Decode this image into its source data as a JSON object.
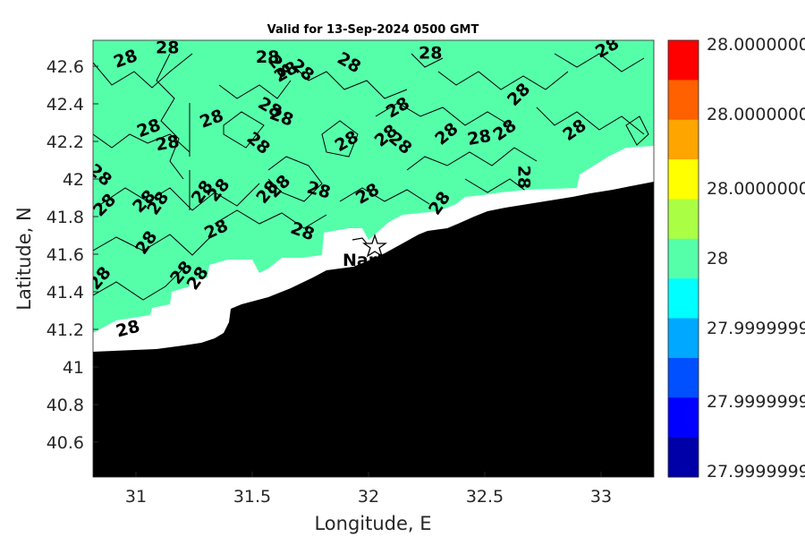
{
  "title": "Valid for 13-Sep-2024 0500 GMT",
  "xlabel": "Longitude, E",
  "ylabel": "Latitude, N",
  "x_ticks": [
    "31",
    "31.5",
    "32",
    "32.5",
    "33"
  ],
  "y_ticks": [
    "40.6",
    "40.8",
    "41",
    "41.2",
    "41.4",
    "41.6",
    "41.8",
    "42",
    "42.2",
    "42.4",
    "42.6"
  ],
  "place_label": "Nartis",
  "contour_level": "28",
  "colorbar": {
    "labels": [
      "28.0000000",
      "28.0000000",
      "28.0000000",
      "28",
      "27.9999999",
      "27.9999999",
      "27.9999999"
    ],
    "colors": [
      "#ff0000",
      "#ff6000",
      "#ffa500",
      "#ffff00",
      "#aaff44",
      "#55ffaa",
      "#00ffff",
      "#00a8ff",
      "#0050ff",
      "#0000ff",
      "#0000a8"
    ]
  },
  "colors": {
    "field": "#55ffaa",
    "land": "#000000",
    "mask": "#ffffff"
  },
  "chart_data": {
    "type": "heatmap",
    "title": "Valid for 13-Sep-2024 0500 GMT",
    "xlabel": "Longitude, E",
    "ylabel": "Latitude, N",
    "xlim": [
      30.82,
      33.23
    ],
    "ylim": [
      40.42,
      42.75
    ],
    "field_value": 28,
    "contour_labels": [
      {
        "x": 30.96,
        "y": 42.65
      },
      {
        "x": 31.14,
        "y": 42.71
      },
      {
        "x": 31.57,
        "y": 42.66
      },
      {
        "x": 31.62,
        "y": 42.61
      },
      {
        "x": 31.65,
        "y": 42.58
      },
      {
        "x": 31.72,
        "y": 42.59
      },
      {
        "x": 31.92,
        "y": 42.63
      },
      {
        "x": 32.27,
        "y": 42.68
      },
      {
        "x": 33.03,
        "y": 42.71
      },
      {
        "x": 31.06,
        "y": 42.28
      },
      {
        "x": 31.33,
        "y": 42.33
      },
      {
        "x": 31.58,
        "y": 42.39
      },
      {
        "x": 31.63,
        "y": 42.34
      },
      {
        "x": 31.14,
        "y": 42.2
      },
      {
        "x": 31.53,
        "y": 42.2
      },
      {
        "x": 31.91,
        "y": 42.21
      },
      {
        "x": 32.13,
        "y": 42.39
      },
      {
        "x": 32.08,
        "y": 42.24
      },
      {
        "x": 32.14,
        "y": 42.2
      },
      {
        "x": 32.34,
        "y": 42.25
      },
      {
        "x": 32.48,
        "y": 42.23
      },
      {
        "x": 32.59,
        "y": 42.27
      },
      {
        "x": 32.65,
        "y": 42.46
      },
      {
        "x": 32.89,
        "y": 42.27
      },
      {
        "x": 30.85,
        "y": 42.03
      },
      {
        "x": 30.87,
        "y": 41.87
      },
      {
        "x": 31.04,
        "y": 41.89
      },
      {
        "x": 31.1,
        "y": 41.88
      },
      {
        "x": 31.29,
        "y": 41.94
      },
      {
        "x": 31.36,
        "y": 41.95
      },
      {
        "x": 31.57,
        "y": 41.94
      },
      {
        "x": 31.62,
        "y": 41.97
      },
      {
        "x": 31.79,
        "y": 41.95
      },
      {
        "x": 32.0,
        "y": 41.93
      },
      {
        "x": 32.31,
        "y": 41.88
      },
      {
        "x": 32.67,
        "y": 42.02
      },
      {
        "x": 31.35,
        "y": 41.74
      },
      {
        "x": 31.72,
        "y": 41.73
      },
      {
        "x": 31.05,
        "y": 41.67
      },
      {
        "x": 31.2,
        "y": 41.51
      },
      {
        "x": 31.27,
        "y": 41.48
      },
      {
        "x": 30.85,
        "y": 41.48
      },
      {
        "x": 30.97,
        "y": 41.21
      }
    ],
    "place": {
      "name": "Nartis",
      "x": 32.02,
      "y": 41.62
    }
  }
}
